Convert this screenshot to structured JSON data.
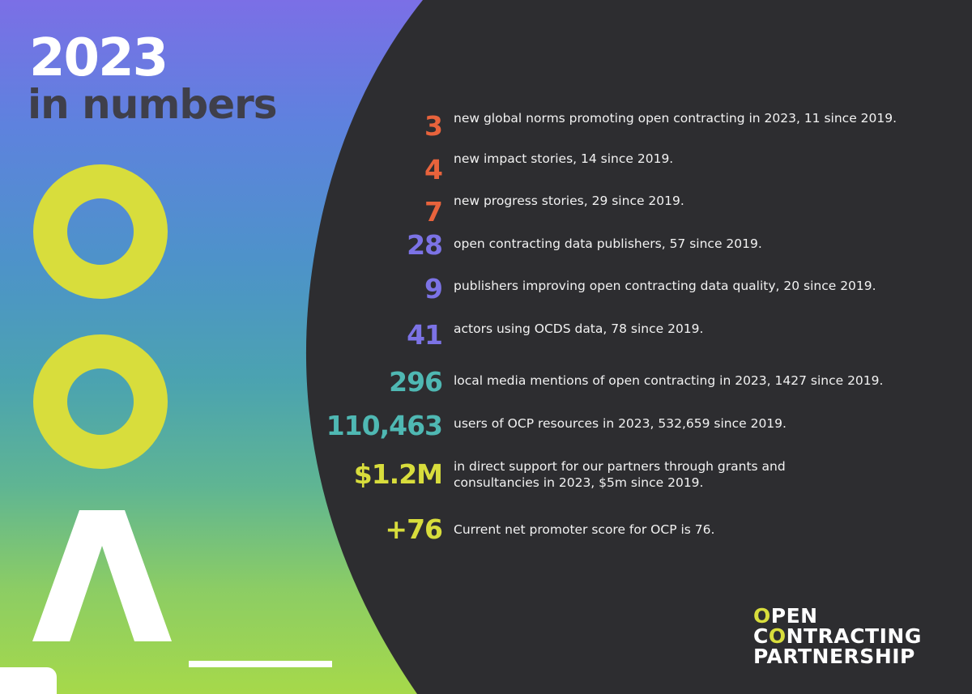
{
  "header": {
    "year": "2023",
    "subtitle": "in numbers"
  },
  "stats": [
    {
      "value": "3",
      "label": "new global norms promoting open contracting in 2023, 11 since 2019.",
      "color": "#e8633c"
    },
    {
      "value": "4",
      "label": "new impact stories, 14 since 2019.",
      "color": "#e8633c"
    },
    {
      "value": "7",
      "label": "new progress stories, 29 since 2019.",
      "color": "#e8633c"
    },
    {
      "value": "28",
      "label": "open contracting data publishers, 57 since 2019.",
      "color": "#7c73e6"
    },
    {
      "value": "9",
      "label": "publishers improving open contracting data quality, 20 since 2019.",
      "color": "#7c73e6"
    },
    {
      "value": "41",
      "label": "actors using OCDS data, 78 since 2019.",
      "color": "#7c73e6"
    },
    {
      "value": "296",
      "label": "local media mentions of open contracting in 2023, 1427 since 2019.",
      "color": "#4fb8b3"
    },
    {
      "value": "110,463",
      "label": "users of OCP resources in 2023, 532,659 since 2019.",
      "color": "#4fb8b3"
    },
    {
      "value": "$1.2M",
      "label_line1": "in direct support for our partners through grants and",
      "label_line2": "consultancies in 2023, $5m since 2019.",
      "color": "#d8dd3c"
    },
    {
      "value": "+76",
      "label": "Current net promoter score for OCP is 76.",
      "color": "#d8dd3c"
    }
  ],
  "logo": {
    "line1_accent": "O",
    "line1_rest": "PEN",
    "line2_start": "C",
    "line2_accent": "O",
    "line2_rest": "NTRACTING",
    "line3": "PARTNERSHIP"
  },
  "colors": {
    "dark_panel": "#2d2d30",
    "ring_yellow": "#d8dd3c",
    "orange": "#e8633c",
    "purple": "#7c73e6",
    "teal": "#4fb8b3",
    "lime": "#d8dd3c"
  },
  "icons": [
    "ring-icon",
    "ring-icon",
    "caret-icon"
  ]
}
